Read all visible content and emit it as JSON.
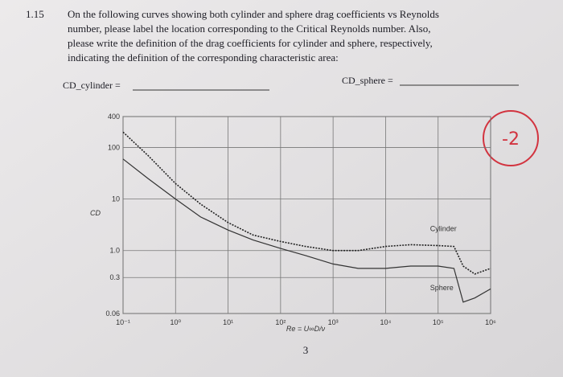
{
  "problem": {
    "number": "1.15",
    "text_lines": [
      "On the following curves showing both cylinder and sphere drag coefficients vs Reynolds",
      "number, please label the location corresponding to the Critical Reynolds number. Also,",
      "please write the definition of the drag coefficients for cylinder and sphere, respectively,",
      "indicating the definition of the corresponding characteristic area:"
    ],
    "cylinder_blank": "CD_cylinder =",
    "sphere_blank": "CD_sphere =",
    "page_number": "3",
    "grade_mark": "-2"
  },
  "chart_data": {
    "type": "line",
    "y_label": "CD",
    "x_label": "Re = U∞D/ν",
    "log_x": true,
    "log_y": true,
    "grid": true,
    "xlim": [
      0.1,
      1000000
    ],
    "ylim": [
      0.06,
      400
    ],
    "xticks": [
      {
        "value": 0.1,
        "label": "10⁻¹"
      },
      {
        "value": 1,
        "label": "10⁰"
      },
      {
        "value": 10,
        "label": "10¹"
      },
      {
        "value": 100,
        "label": "10²"
      },
      {
        "value": 1000,
        "label": "10³"
      },
      {
        "value": 10000,
        "label": "10⁴"
      },
      {
        "value": 100000,
        "label": "10⁵"
      },
      {
        "value": 1000000,
        "label": "10⁶"
      }
    ],
    "yticks": [
      400,
      100,
      10,
      {
        "value": 1,
        "label": "1.0"
      },
      0.3,
      0.06
    ],
    "x": [
      0.1,
      0.3,
      1,
      3,
      10,
      30,
      100,
      300,
      1000,
      3000,
      10000,
      30000,
      100000,
      200000,
      300000,
      500000,
      1000000
    ],
    "series": [
      {
        "name": "Cylinder",
        "color": "#222222",
        "values": [
          200,
          70,
          20,
          8,
          3.5,
          2,
          1.5,
          1.2,
          1.0,
          1.0,
          1.2,
          1.3,
          1.25,
          1.2,
          0.5,
          0.35,
          0.45
        ]
      },
      {
        "name": "Sphere",
        "color": "#333333",
        "values": [
          60,
          25,
          10,
          4.5,
          2.5,
          1.6,
          1.1,
          0.8,
          0.55,
          0.45,
          0.45,
          0.5,
          0.5,
          0.45,
          0.1,
          0.12,
          0.18
        ]
      }
    ]
  }
}
